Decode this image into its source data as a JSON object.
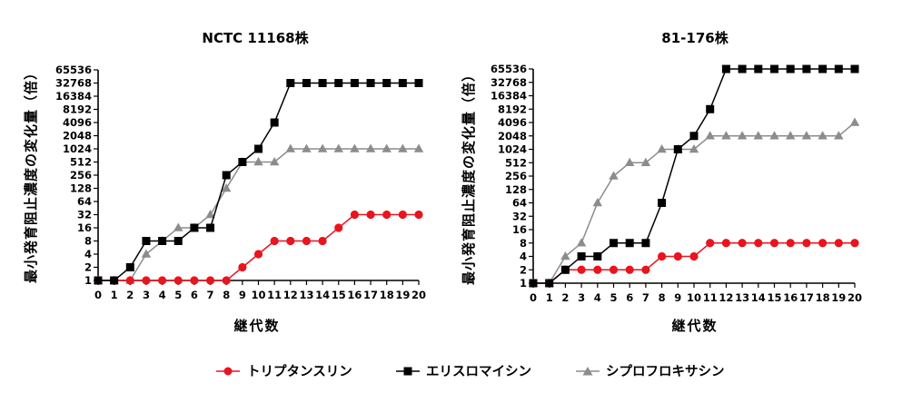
{
  "chart_data": [
    {
      "type": "line",
      "title": "NCTC 11168株",
      "xlabel": "継代数",
      "ylabel": "最小発育阻止濃度の変化量（倍）",
      "x": [
        0,
        1,
        2,
        3,
        4,
        5,
        6,
        7,
        8,
        9,
        10,
        11,
        12,
        13,
        14,
        15,
        16,
        17,
        18,
        19,
        20
      ],
      "xlim": [
        0,
        20
      ],
      "yscale": "log2",
      "ylim": [
        1,
        65536
      ],
      "yticks": [
        "1",
        "2",
        "4",
        "8",
        "16",
        "32",
        "64",
        "128",
        "256",
        "512",
        "1024",
        "2048",
        "4096",
        "8192",
        "16384",
        "32768",
        "65536"
      ],
      "series": [
        {
          "name": "トリプタンスリン",
          "color": "#e8141e",
          "marker": "circle",
          "values": [
            1,
            1,
            1,
            1,
            1,
            1,
            1,
            1,
            1,
            2,
            4,
            8,
            8,
            8,
            8,
            16,
            32,
            32,
            32,
            32,
            32
          ]
        },
        {
          "name": "エリスロマイシン",
          "color": "#000000",
          "marker": "square",
          "values": [
            1,
            1,
            2,
            8,
            8,
            8,
            16,
            16,
            256,
            512,
            1024,
            4096,
            32768,
            32768,
            32768,
            32768,
            32768,
            32768,
            32768,
            32768,
            32768
          ]
        },
        {
          "name": "シプロフロキサシン",
          "color": "#8c8c8c",
          "marker": "triangle",
          "values": [
            1,
            1,
            1,
            4,
            8,
            16,
            16,
            32,
            128,
            512,
            512,
            512,
            1024,
            1024,
            1024,
            1024,
            1024,
            1024,
            1024,
            1024,
            1024
          ]
        }
      ]
    },
    {
      "type": "line",
      "title": "81-176株",
      "xlabel": "継代数",
      "ylabel": "最小発育阻止濃度の変化量（倍）",
      "x": [
        0,
        1,
        2,
        3,
        4,
        5,
        6,
        7,
        8,
        9,
        10,
        11,
        12,
        13,
        14,
        15,
        16,
        17,
        18,
        19,
        20
      ],
      "xlim": [
        0,
        20
      ],
      "yscale": "log2",
      "ylim": [
        1,
        65536
      ],
      "yticks": [
        "1",
        "2",
        "4",
        "8",
        "16",
        "32",
        "64",
        "128",
        "256",
        "512",
        "1024",
        "2048",
        "4096",
        "8192",
        "16384",
        "32768",
        "65536"
      ],
      "series": [
        {
          "name": "トリプタンスリン",
          "color": "#e8141e",
          "marker": "circle",
          "values": [
            1,
            1,
            2,
            2,
            2,
            2,
            2,
            2,
            4,
            4,
            4,
            8,
            8,
            8,
            8,
            8,
            8,
            8,
            8,
            8,
            8
          ]
        },
        {
          "name": "エリスロマイシン",
          "color": "#000000",
          "marker": "square",
          "values": [
            1,
            1,
            2,
            4,
            4,
            8,
            8,
            8,
            64,
            1024,
            2048,
            8192,
            65536,
            65536,
            65536,
            65536,
            65536,
            65536,
            65536,
            65536,
            65536
          ]
        },
        {
          "name": "シプロフロキサシン",
          "color": "#8c8c8c",
          "marker": "triangle",
          "values": [
            1,
            1,
            4,
            8,
            64,
            256,
            512,
            512,
            1024,
            1024,
            1024,
            2048,
            2048,
            2048,
            2048,
            2048,
            2048,
            2048,
            2048,
            2048,
            4096
          ]
        }
      ]
    }
  ],
  "legend": [
    {
      "label": "トリプタンスリン",
      "color": "#e8141e",
      "marker": "circle"
    },
    {
      "label": "エリスロマイシン",
      "color": "#000000",
      "marker": "square"
    },
    {
      "label": "シプロフロキサシン",
      "color": "#8c8c8c",
      "marker": "triangle"
    }
  ]
}
